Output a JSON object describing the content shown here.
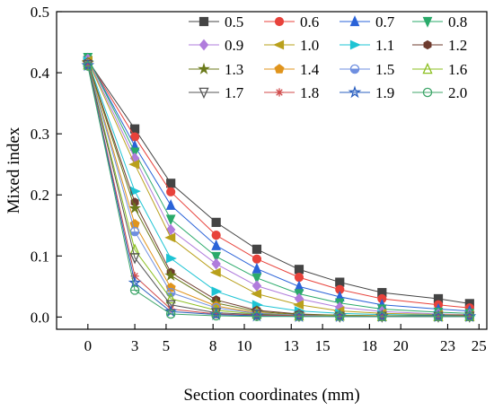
{
  "chart_data": {
    "type": "line",
    "title": "",
    "xlabel": "Section coordinates (mm)",
    "ylabel": "Mixed index",
    "xlim": [
      -2,
      25.5
    ],
    "ylim": [
      -0.02,
      0.5
    ],
    "x_ticks": [
      0,
      3,
      5,
      8,
      10,
      13,
      15,
      18,
      20,
      23,
      25
    ],
    "y_ticks": [
      0.0,
      0.1,
      0.2,
      0.3,
      0.4,
      0.5
    ],
    "y_tick_labels": [
      "0.0",
      "0.1",
      "0.2",
      "0.3",
      "0.4",
      "0.5"
    ],
    "grid": false,
    "legend_position": "top-right",
    "x": [
      0,
      3,
      5.3,
      8.2,
      10.8,
      13.5,
      16.1,
      18.8,
      22.4,
      24.4
    ],
    "series": [
      {
        "name": "0.5",
        "color": "#444444",
        "marker": "square",
        "values": [
          0.42,
          0.308,
          0.219,
          0.155,
          0.111,
          0.078,
          0.057,
          0.04,
          0.03,
          0.022
        ]
      },
      {
        "name": "0.6",
        "color": "#e8423b",
        "marker": "circle",
        "values": [
          0.421,
          0.295,
          0.205,
          0.134,
          0.095,
          0.065,
          0.045,
          0.03,
          0.02,
          0.015
        ]
      },
      {
        "name": "0.7",
        "color": "#2a63d8",
        "marker": "triangle-up",
        "values": [
          0.423,
          0.28,
          0.183,
          0.117,
          0.079,
          0.05,
          0.033,
          0.02,
          0.013,
          0.01
        ]
      },
      {
        "name": "0.8",
        "color": "#2aaa6a",
        "marker": "triangle-down",
        "values": [
          0.425,
          0.27,
          0.16,
          0.099,
          0.064,
          0.038,
          0.023,
          0.013,
          0.008,
          0.006
        ]
      },
      {
        "name": "0.9",
        "color": "#b07cdc",
        "marker": "diamond",
        "values": [
          0.422,
          0.26,
          0.143,
          0.087,
          0.051,
          0.03,
          0.016,
          0.009,
          0.005,
          0.004
        ]
      },
      {
        "name": "1.0",
        "color": "#b9a01b",
        "marker": "triangle-left",
        "values": [
          0.42,
          0.25,
          0.13,
          0.073,
          0.038,
          0.02,
          0.01,
          0.006,
          0.004,
          0.003
        ]
      },
      {
        "name": "1.1",
        "color": "#1ec4d4",
        "marker": "triangle-right",
        "values": [
          0.419,
          0.206,
          0.096,
          0.042,
          0.02,
          0.01,
          0.006,
          0.004,
          0.003,
          0.002
        ]
      },
      {
        "name": "1.2",
        "color": "#6e3b2e",
        "marker": "hexagon",
        "values": [
          0.417,
          0.188,
          0.073,
          0.028,
          0.011,
          0.005,
          0.003,
          0.002,
          0.002,
          0.002
        ]
      },
      {
        "name": "1.3",
        "color": "#6b7a1b",
        "marker": "star",
        "values": [
          0.416,
          0.178,
          0.068,
          0.023,
          0.009,
          0.004,
          0.003,
          0.002,
          0.001,
          0.001
        ]
      },
      {
        "name": "1.4",
        "color": "#e0941c",
        "marker": "pentagon",
        "values": [
          0.415,
          0.152,
          0.048,
          0.018,
          0.007,
          0.003,
          0.002,
          0.002,
          0.001,
          0.001
        ]
      },
      {
        "name": "1.5",
        "color": "#6f8fe0",
        "marker": "circle-half",
        "values": [
          0.414,
          0.14,
          0.04,
          0.015,
          0.006,
          0.003,
          0.002,
          0.001,
          0.001,
          0.001
        ]
      },
      {
        "name": "1.6",
        "color": "#8bbf1f",
        "marker": "triangle-up-open",
        "values": [
          0.413,
          0.11,
          0.03,
          0.011,
          0.005,
          0.002,
          0.002,
          0.001,
          0.001,
          0.001
        ]
      },
      {
        "name": "1.7",
        "color": "#555555",
        "marker": "triangle-down-open",
        "values": [
          0.413,
          0.097,
          0.02,
          0.007,
          0.004,
          0.002,
          0.001,
          0.001,
          0.001,
          0.001
        ]
      },
      {
        "name": "1.8",
        "color": "#d04a4a",
        "marker": "asterisk",
        "values": [
          0.412,
          0.067,
          0.013,
          0.005,
          0.003,
          0.002,
          0.001,
          0.001,
          0.001,
          0.001
        ]
      },
      {
        "name": "1.9",
        "color": "#2a5fbf",
        "marker": "star-open",
        "values": [
          0.412,
          0.056,
          0.009,
          0.004,
          0.002,
          0.001,
          0.001,
          0.001,
          0.001,
          0.001
        ]
      },
      {
        "name": "2.0",
        "color": "#3fa66a",
        "marker": "circle-open",
        "values": [
          0.411,
          0.044,
          0.005,
          0.002,
          0.001,
          0.001,
          0.001,
          0.001,
          0.001,
          0.001
        ]
      }
    ]
  }
}
